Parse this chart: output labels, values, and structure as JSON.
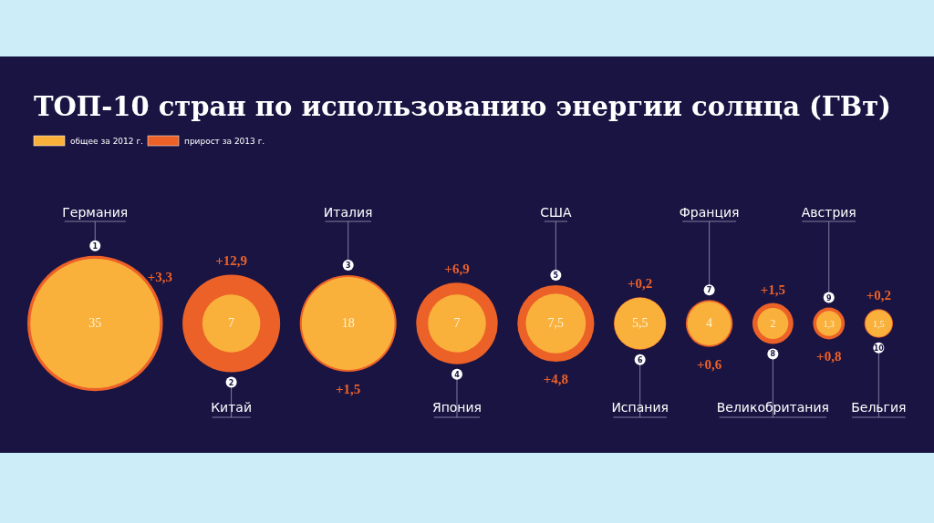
{
  "chart_data": {
    "type": "other",
    "title": "ТОП-10 стран по использованию энергии солнца (ГВт)",
    "categories": [
      "Германия",
      "Китай",
      "Италия",
      "Япония",
      "США",
      "Испания",
      "Франция",
      "Великобритания",
      "Австрия",
      "Бельгия"
    ],
    "series": [
      {
        "name": "общее за 2012 г.",
        "color": "#f9b13c",
        "values": [
          35,
          7,
          18,
          7,
          7.5,
          5.5,
          4,
          2,
          1.3,
          1.5
        ],
        "value_labels": [
          "35",
          "7",
          "18",
          "7",
          "7,5",
          "5,5",
          "4",
          "2",
          "1,3",
          "1,5"
        ]
      },
      {
        "name": "прирост за 2013 г.",
        "color": "#ec6127",
        "values": [
          3.3,
          12.9,
          1.5,
          6.9,
          4.8,
          0.2,
          0.6,
          1.5,
          0.8,
          0.2
        ],
        "value_labels": [
          "+3,3",
          "+12,9",
          "+1,5",
          "+6,9",
          "+4,8",
          "+0,2",
          "+0,6",
          "+1,5",
          "+0,8",
          "+0,2"
        ]
      }
    ],
    "annotations": [
      "1",
      "2",
      "3",
      "4",
      "5",
      "6",
      "7",
      "8",
      "9",
      "10"
    ],
    "legend": "top left"
  }
}
